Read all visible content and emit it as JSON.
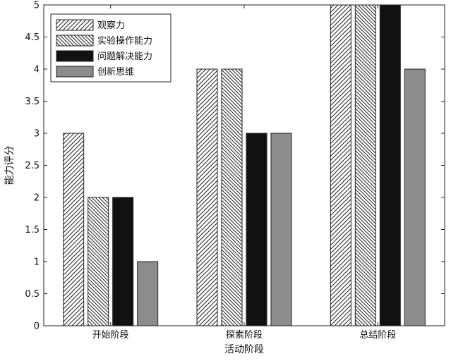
{
  "chart_data": {
    "type": "bar",
    "xlabel": "活动阶段",
    "ylabel": "能力评分",
    "categories": [
      "开始阶段",
      "探索阶段",
      "总结阶段"
    ],
    "ylim": [
      0,
      5
    ],
    "yticks": [
      "0",
      "0.5",
      "1",
      "1.5",
      "2",
      "2.5",
      "3",
      "3.5",
      "4",
      "4.5",
      "5"
    ],
    "grid": false,
    "legend_position": "top-left",
    "series": [
      {
        "name": "观察力",
        "values": [
          3,
          4,
          5
        ],
        "pattern": "hatch-right",
        "color": "#ffffff"
      },
      {
        "name": "实验操作能力",
        "values": [
          2,
          4,
          5
        ],
        "pattern": "hatch-left",
        "color": "#ffffff"
      },
      {
        "name": "问题解决能力",
        "values": [
          2,
          3,
          5
        ],
        "pattern": "solid",
        "color": "#111111"
      },
      {
        "name": "创新思维",
        "values": [
          1,
          3,
          4
        ],
        "pattern": "solid",
        "color": "#8c8c8c"
      }
    ]
  }
}
